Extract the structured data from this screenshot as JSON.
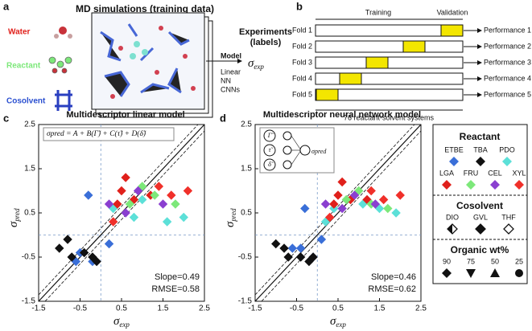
{
  "panel_a": {
    "letter": "a",
    "title": "MD simulations (training data)",
    "species": [
      "Water",
      "Reactant",
      "Cosolvent"
    ],
    "experiments": "Experiments",
    "labels": "(labels)",
    "model": "Model",
    "models": [
      "Linear",
      "NN",
      "CNNs"
    ],
    "sigma": "σ",
    "sigma_sub": "exp"
  },
  "panel_b": {
    "letter": "b",
    "training": "Training",
    "validation": "Validation",
    "folds": [
      {
        "label": "Fold 1",
        "result": "Performance 1"
      },
      {
        "label": "Fold 2",
        "result": "Performance 2"
      },
      {
        "label": "Fold 3",
        "result": "Performance 3"
      },
      {
        "label": "Fold 4",
        "result": "Performance 4"
      },
      {
        "label": "Fold 5",
        "result": "Performance 5"
      }
    ],
    "systems": "76 reactant-solvent systems"
  },
  "chart_data": [
    {
      "type": "scatter",
      "letter": "c",
      "title": "Multidescriptor linear model",
      "formula": "σpred = A + B(Γ̃) + C(τ̃) + D(δ̃)",
      "xlabel": "σ",
      "xlabel_sub": "exp",
      "ylabel": "σ",
      "ylabel_sub": "pred",
      "slope": "Slope=0.49",
      "rmse": "RMSE=0.58",
      "xlim": [
        -1.5,
        2.5
      ],
      "ylim": [
        -1.5,
        2.5
      ],
      "xticks": [
        -1.5,
        -0.5,
        0.5,
        1.5,
        2.5
      ],
      "yticks": [
        -1.5,
        -0.5,
        0.5,
        1.5,
        2.5
      ],
      "series": [
        {
          "name": "ETBE",
          "color": "#3a6fd8",
          "x": [
            -0.3,
            -0.5,
            -0.2,
            0.2,
            -0.6
          ],
          "values": [
            0.9,
            -0.4,
            -0.6,
            -0.2,
            -0.6
          ]
        },
        {
          "name": "TBA",
          "color": "#111111",
          "x": [
            -1.0,
            -0.7,
            -0.4,
            -0.2,
            -0.1,
            -0.8
          ],
          "values": [
            -0.3,
            -0.5,
            -0.4,
            -0.5,
            -0.6,
            -0.1
          ]
        },
        {
          "name": "PDO",
          "color": "#5ce0d8",
          "x": [
            0.3,
            1.0,
            2.0,
            1.6,
            0.8
          ],
          "values": [
            0.6,
            0.8,
            0.4,
            0.3,
            0.4
          ]
        },
        {
          "name": "LGA",
          "color": "#e0201b",
          "x": [
            0.5,
            0.8,
            1.2,
            0.6,
            0.4
          ],
          "values": [
            1.0,
            0.8,
            0.9,
            1.3,
            0.7
          ]
        },
        {
          "name": "FRU",
          "color": "#7de87a",
          "x": [
            0.7,
            1.3,
            1.8,
            1.0
          ],
          "values": [
            0.7,
            0.9,
            0.7,
            1.1
          ]
        },
        {
          "name": "CEL",
          "color": "#8a3fd0",
          "x": [
            0.2,
            0.6,
            1.5,
            0.9
          ],
          "values": [
            0.7,
            0.5,
            0.7,
            1.0
          ]
        },
        {
          "name": "XYL",
          "color": "#f0302a",
          "x": [
            2.1,
            1.7,
            0.3,
            1.4
          ],
          "values": [
            1.0,
            0.9,
            0.3,
            1.1
          ]
        }
      ]
    },
    {
      "type": "scatter",
      "letter": "d",
      "title": "Multidescriptor neural network model",
      "inset": [
        "Γ̃",
        "τ̃",
        "δ̃",
        "σpred"
      ],
      "xlabel": "σ",
      "xlabel_sub": "exp",
      "ylabel": "σ",
      "ylabel_sub": "pred",
      "slope": "Slope=0.46",
      "rmse": "RMSE=0.62",
      "xlim": [
        -1.5,
        2.5
      ],
      "ylim": [
        -1.5,
        2.5
      ],
      "xticks": [
        -1.5,
        -0.5,
        0.5,
        1.5,
        2.5
      ],
      "yticks": [
        -1.5,
        -0.5,
        0.5,
        1.5,
        2.5
      ],
      "series": [
        {
          "name": "ETBE",
          "color": "#3a6fd8",
          "x": [
            -0.3,
            -0.4,
            -0.1,
            0.1,
            -0.6
          ],
          "values": [
            0.6,
            -0.3,
            -0.5,
            -0.1,
            -0.3
          ]
        },
        {
          "name": "TBA",
          "color": "#111111",
          "x": [
            -1.0,
            -0.7,
            -0.4,
            -0.2,
            -0.1,
            -0.8
          ],
          "values": [
            -0.2,
            -0.5,
            -0.5,
            -0.6,
            -0.5,
            -0.3
          ]
        },
        {
          "name": "PDO",
          "color": "#5ce0d8",
          "x": [
            0.4,
            1.1,
            1.9,
            1.5,
            0.2
          ],
          "values": [
            0.6,
            0.7,
            0.5,
            0.6,
            0.3
          ]
        },
        {
          "name": "LGA",
          "color": "#e0201b",
          "x": [
            0.5,
            0.8,
            1.2,
            0.6,
            0.4
          ],
          "values": [
            0.9,
            0.8,
            0.8,
            1.2,
            0.7
          ]
        },
        {
          "name": "FRU",
          "color": "#7de87a",
          "x": [
            0.7,
            1.3,
            1.7,
            1.0
          ],
          "values": [
            0.8,
            0.7,
            0.6,
            1.0
          ]
        },
        {
          "name": "CEL",
          "color": "#8a3fd0",
          "x": [
            0.2,
            0.6,
            1.4,
            0.9
          ],
          "values": [
            0.7,
            0.6,
            0.7,
            0.9
          ]
        },
        {
          "name": "XYL",
          "color": "#f0302a",
          "x": [
            2.0,
            1.6,
            0.3,
            1.3
          ],
          "values": [
            0.9,
            0.8,
            0.4,
            1.0
          ]
        }
      ]
    }
  ],
  "legend": {
    "reactant": "Reactant",
    "cosolvent": "Cosolvent",
    "cosolvents": [
      "DIO",
      "GVL",
      "THF"
    ],
    "organic": "Organic wt%",
    "wt": [
      "90",
      "75",
      "50",
      "25"
    ]
  }
}
